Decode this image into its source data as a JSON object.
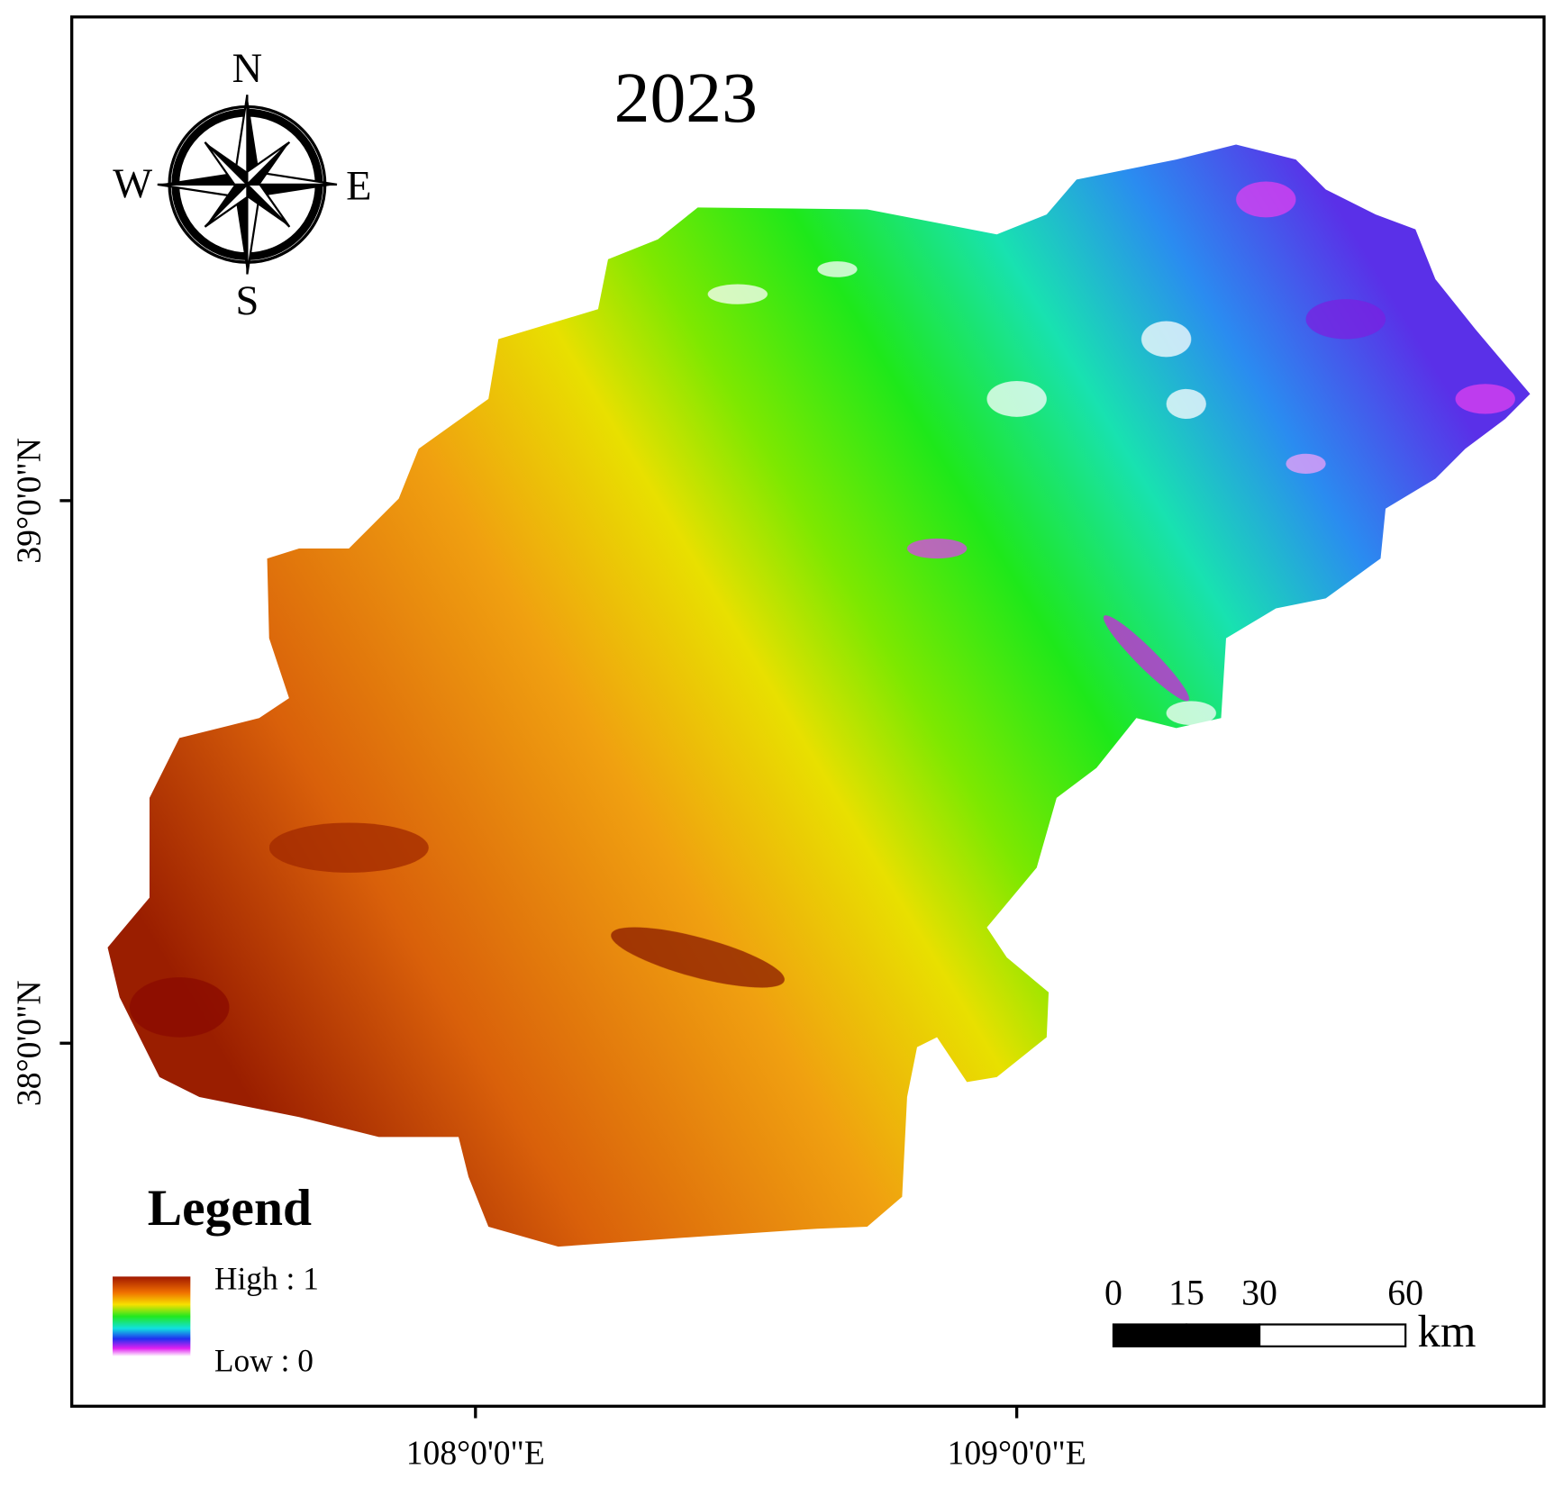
{
  "title": "2023",
  "compass": {
    "north": "N",
    "south": "S",
    "east": "E",
    "west": "W"
  },
  "graticule": {
    "latitudes": [
      "39°0'0\"N",
      "38°0'0\"N"
    ],
    "longitudes": [
      "108°0'0\"E",
      "109°0'0\"E"
    ]
  },
  "legend": {
    "title": "Legend",
    "high": "High : 1",
    "low": "Low : 0"
  },
  "scale_bar": {
    "ticks": [
      0,
      15,
      30,
      60
    ],
    "unit": "km"
  }
}
